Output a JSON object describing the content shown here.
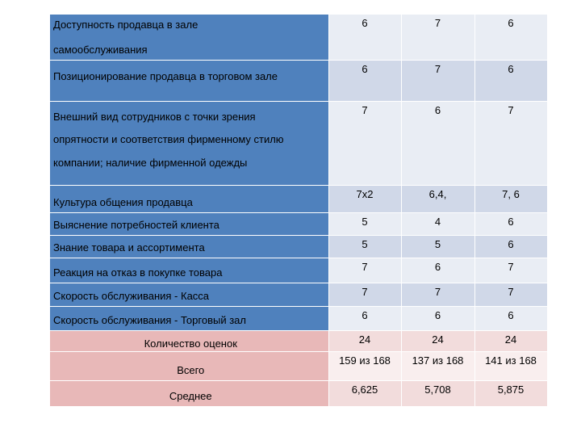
{
  "rows": [
    {
      "label_lines": [
        "Доступность продавца в зале",
        "самообслуживания"
      ],
      "v": [
        "6",
        "7",
        "6"
      ]
    },
    {
      "label_lines": [
        "Позиционирование продавца в торговом зале"
      ],
      "v": [
        "6",
        "7",
        "6"
      ]
    },
    {
      "label_lines": [
        "Внешний вид сотрудников с точки зрения",
        "опрятности и соответствия фирменному стилю",
        "компании; наличие фирменной одежды"
      ],
      "v": [
        "7",
        "6",
        "7"
      ]
    },
    {
      "label_lines": [
        "Культура общения продавца"
      ],
      "v": [
        "7х2",
        "6,4,",
        "7, 6"
      ]
    },
    {
      "label_lines": [
        "Выяснение потребностей клиента"
      ],
      "v": [
        "5",
        "4",
        "6"
      ]
    },
    {
      "label_lines": [
        "Знание товара и ассортимента"
      ],
      "v": [
        "5",
        "5",
        "6"
      ]
    },
    {
      "label_lines": [
        "Реакция на отказ в покупке товара"
      ],
      "v": [
        "7",
        "6",
        "7"
      ]
    },
    {
      "label_lines": [
        "Скорость обслуживания - Касса"
      ],
      "v": [
        "7",
        "7",
        "7"
      ]
    },
    {
      "label_lines": [
        "Скорость обслуживания - Торговый зал"
      ],
      "v": [
        "6",
        "6",
        "6"
      ]
    }
  ],
  "summary": [
    {
      "label": "Количество оценок",
      "v": [
        "24",
        "24",
        "24"
      ]
    },
    {
      "label": "Всего",
      "v": [
        "159 из 168",
        "137 из 168",
        "141 из 168"
      ]
    },
    {
      "label": "Среднее",
      "v": [
        "6,625",
        "5,708",
        "5,875"
      ]
    }
  ]
}
